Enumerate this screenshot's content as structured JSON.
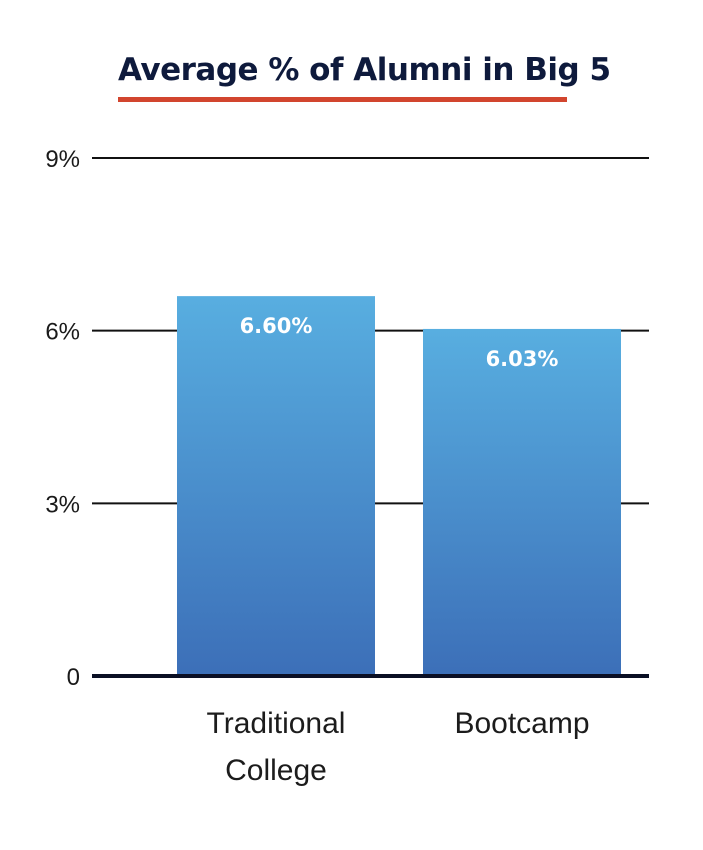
{
  "chart_data": {
    "type": "bar",
    "title": "Average % of Alumni in Big 5",
    "categories": [
      "Traditional College",
      "Bootcamp"
    ],
    "category_lines": [
      [
        "Traditional",
        "College"
      ],
      [
        "Bootcamp"
      ]
    ],
    "values": [
      6.6,
      6.03
    ],
    "data_labels": [
      "6.60%",
      "6.03%"
    ],
    "ylim": [
      0,
      9
    ],
    "yticks": [
      0,
      3,
      6,
      9
    ],
    "ytick_labels": [
      "0",
      "3%",
      "6%",
      "9%"
    ],
    "xlabel": "",
    "ylabel": "",
    "grid": true,
    "colors": {
      "bar_top": "#58aee0",
      "bar_bottom": "#3c6fb8",
      "title": "#0e1a3c",
      "title_underline": "#d2452e",
      "axis": "#0a0f24"
    }
  }
}
